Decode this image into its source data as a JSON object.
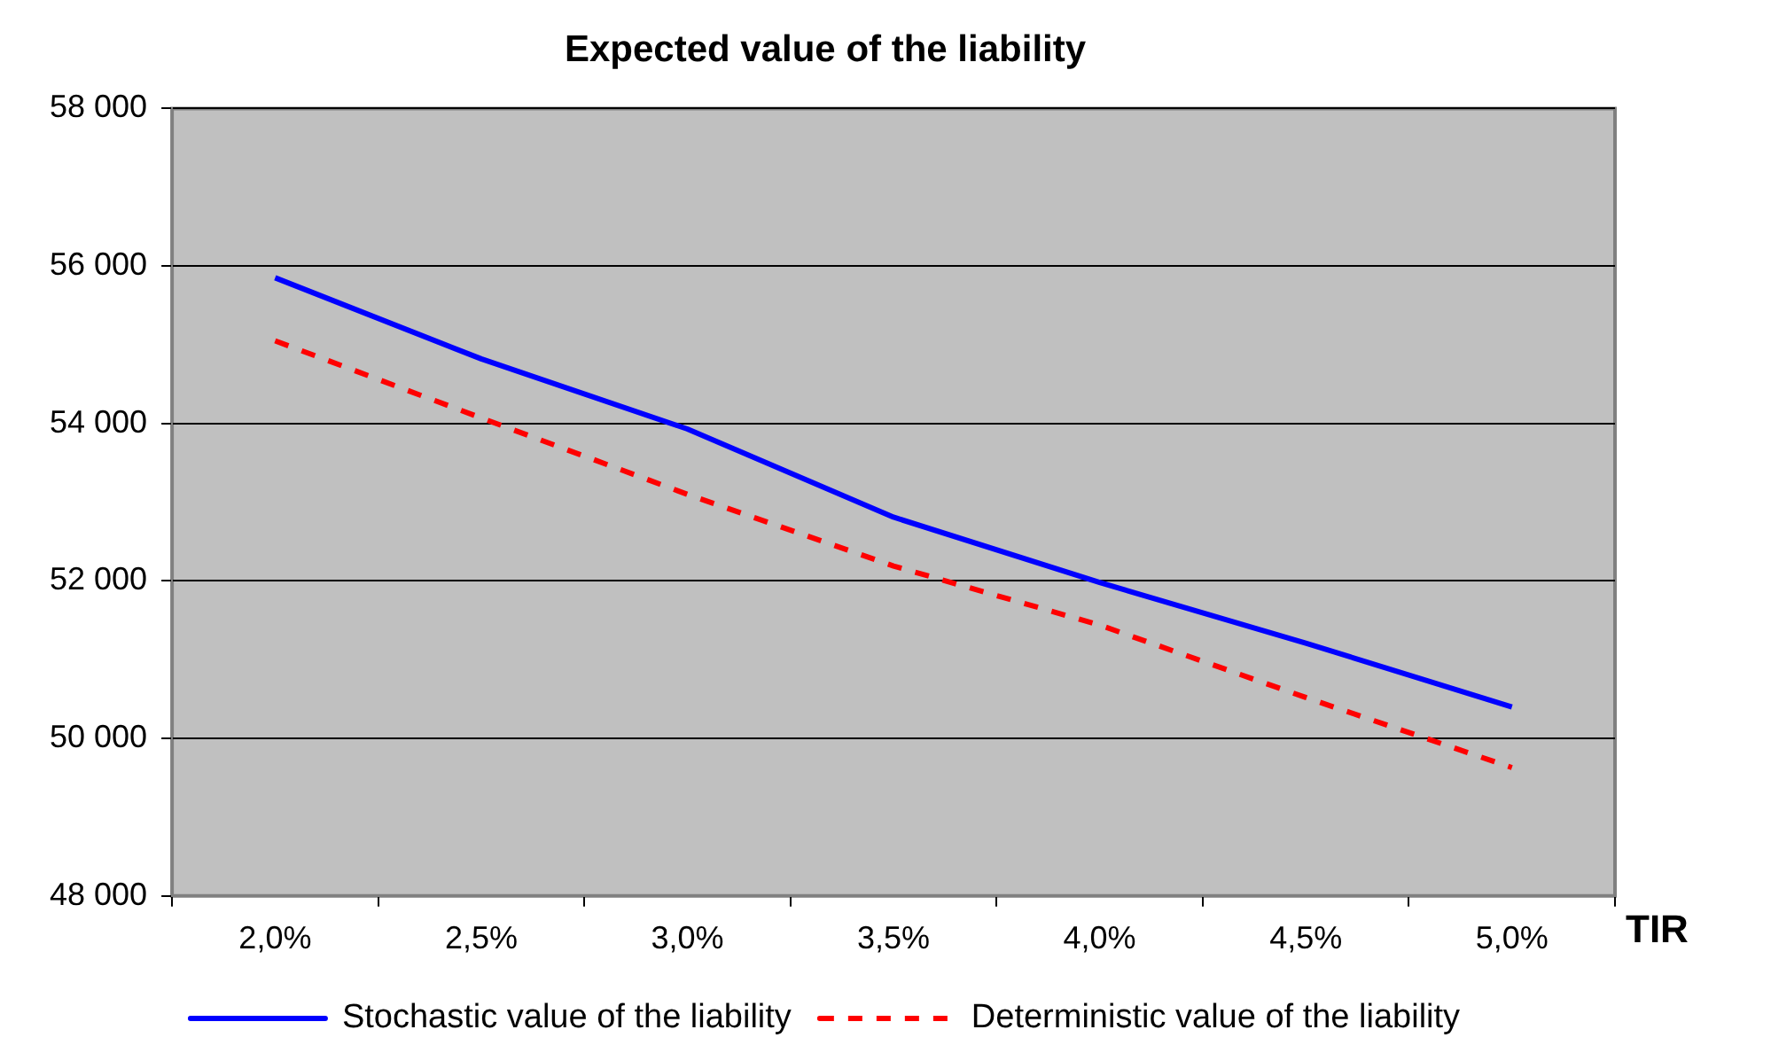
{
  "chart_data": {
    "type": "line",
    "title": "Expected value of the liability",
    "xlabel": "TIR",
    "categories": [
      "2,0%",
      "2,5%",
      "3,0%",
      "3,5%",
      "4,0%",
      "4,5%",
      "5,0%"
    ],
    "series": [
      {
        "name": "Stochastic value of the liability",
        "color": "#0000ff",
        "line_style": "solid",
        "values": [
          55850,
          54820,
          53930,
          52810,
          51980,
          51210,
          50400
        ]
      },
      {
        "name": "Deterministic value of the liability",
        "color": "#ff0000",
        "line_style": "dashed",
        "values": [
          55050,
          54070,
          53100,
          52190,
          51440,
          50520,
          49630
        ]
      }
    ],
    "ylim": [
      48000,
      58000
    ],
    "yticks": [
      {
        "value": 48000,
        "label": "48 000"
      },
      {
        "value": 50000,
        "label": "50 000"
      },
      {
        "value": 52000,
        "label": "52 000"
      },
      {
        "value": 54000,
        "label": "54 000"
      },
      {
        "value": 56000,
        "label": "56 000"
      },
      {
        "value": 58000,
        "label": "58 000"
      }
    ],
    "grid": "y",
    "legend": "bottom",
    "marker": "none"
  }
}
